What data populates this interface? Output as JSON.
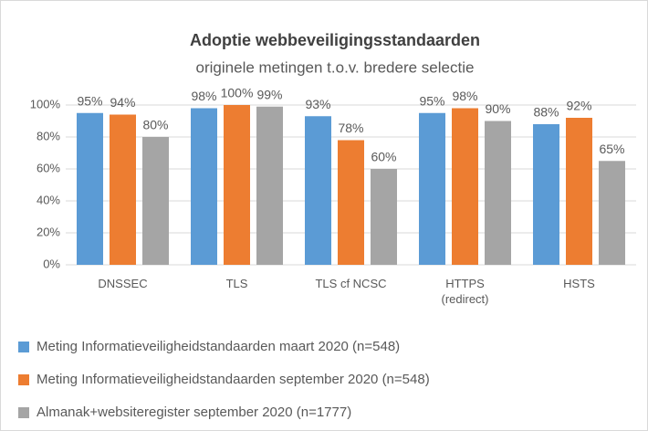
{
  "chart_data": {
    "type": "bar",
    "title": "Adoptie webbeveiligingsstandaarden",
    "subtitle": "originele metingen t.o.v. bredere selectie",
    "categories": [
      "DNSSEC",
      "TLS",
      "TLS cf NCSC",
      "HTTPS\n(redirect)",
      "HSTS"
    ],
    "series": [
      {
        "name": "Meting Informatieveiligheidstandaarden maart 2020 (n=548)",
        "color": "#5b9bd5",
        "values": [
          95,
          98,
          93,
          95,
          88
        ],
        "value_labels": [
          "95%",
          "98%",
          "93%",
          "95%",
          "88%"
        ]
      },
      {
        "name": "Meting Informatieveiligheidstandaarden september 2020 (n=548)",
        "color": "#ed7d31",
        "values": [
          94,
          100,
          78,
          98,
          92
        ],
        "value_labels": [
          "94%",
          "100%",
          "78%",
          "98%",
          "92%"
        ]
      },
      {
        "name": "Almanak+websiteregister september 2020 (n=1777)",
        "color": "#a5a5a5",
        "values": [
          80,
          99,
          60,
          90,
          65
        ],
        "value_labels": [
          "80%",
          "99%",
          "60%",
          "90%",
          "65%"
        ]
      }
    ],
    "ylim": [
      0,
      100
    ],
    "yticks": [
      {
        "value": 0,
        "label": "0%"
      },
      {
        "value": 20,
        "label": "20%"
      },
      {
        "value": 40,
        "label": "40%"
      },
      {
        "value": 60,
        "label": "60%"
      },
      {
        "value": 80,
        "label": "80%"
      },
      {
        "value": 100,
        "label": "100%"
      }
    ],
    "grid": true,
    "legend": "bottom"
  }
}
